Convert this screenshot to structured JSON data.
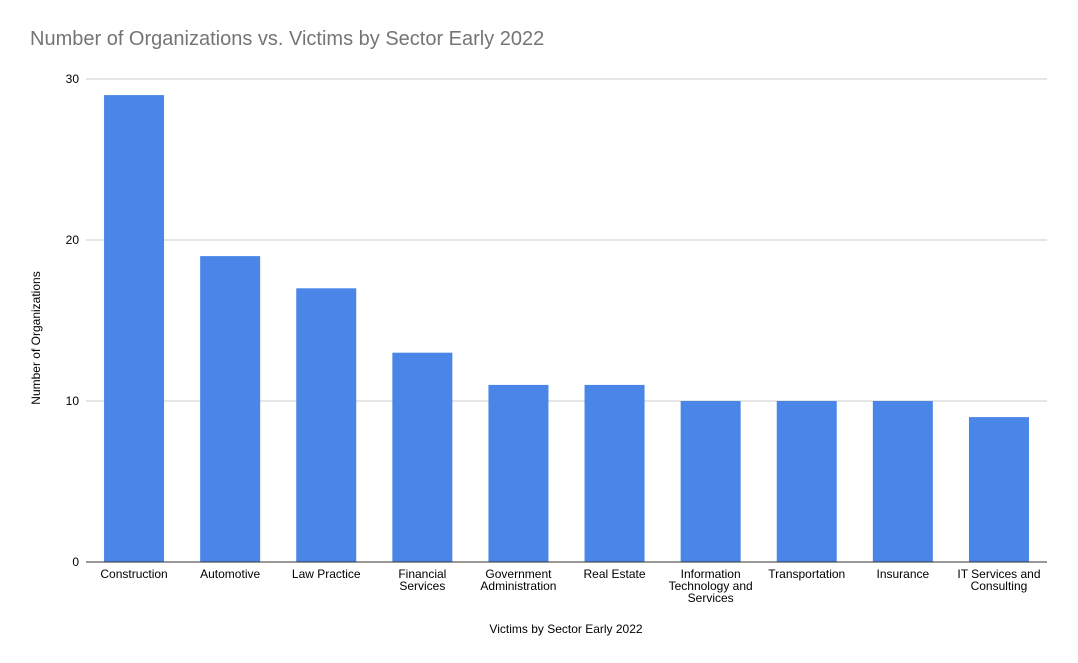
{
  "chart_data": {
    "type": "bar",
    "title": "Number of Organizations vs. Victims by Sector Early 2022",
    "xlabel": "Victims by Sector Early 2022",
    "ylabel": "Number of Organizations",
    "categories": [
      [
        "Construction"
      ],
      [
        "Automotive"
      ],
      [
        "Law Practice"
      ],
      [
        "Financial",
        "Services"
      ],
      [
        "Government",
        "Administration"
      ],
      [
        "Real Estate"
      ],
      [
        "Information",
        "Technology and",
        "Services"
      ],
      [
        "Transportation"
      ],
      [
        "Insurance"
      ],
      [
        "IT Services and",
        "Consulting"
      ]
    ],
    "values": [
      29,
      19,
      17,
      13,
      11,
      11,
      10,
      10,
      10,
      9
    ],
    "ylim": [
      0,
      30
    ],
    "yticks": [
      0,
      10,
      20,
      30
    ],
    "grid": true,
    "legend": "none",
    "colors": {
      "bar": "#4a86e8",
      "grid": "#cccccc",
      "axis": "#333333"
    }
  }
}
